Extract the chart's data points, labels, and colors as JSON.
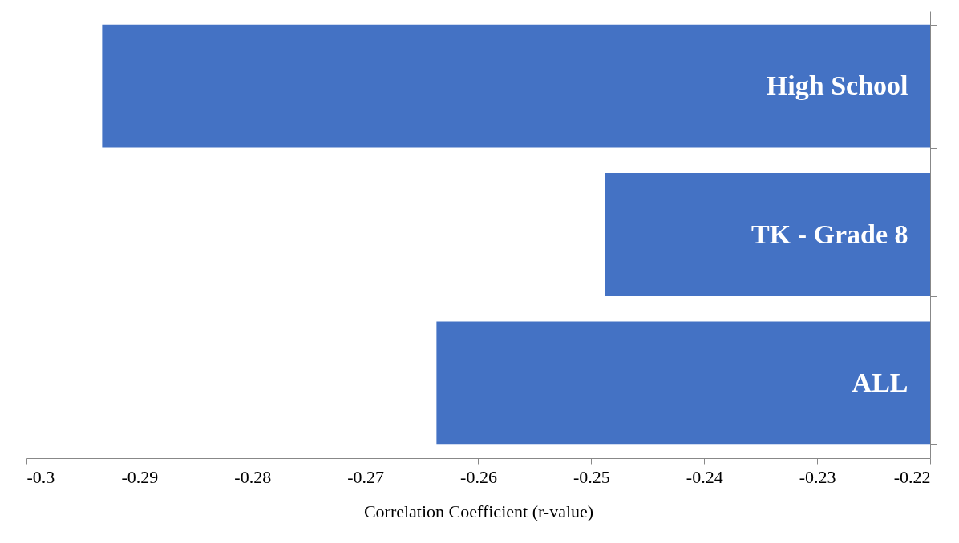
{
  "chart_data": {
    "type": "bar",
    "orientation": "horizontal",
    "categories": [
      "High School",
      "TK - Grade 8",
      "ALL"
    ],
    "values": [
      -0.2933,
      -0.2488,
      -0.2637
    ],
    "color": "#4472c4",
    "xlabel": "Correlation Coefficient (r-value)",
    "xlim": [
      -0.3,
      -0.22
    ],
    "xticks": [
      -0.3,
      -0.29,
      -0.28,
      -0.27,
      -0.26,
      -0.25,
      -0.24,
      -0.23,
      -0.22
    ],
    "grid": false
  }
}
